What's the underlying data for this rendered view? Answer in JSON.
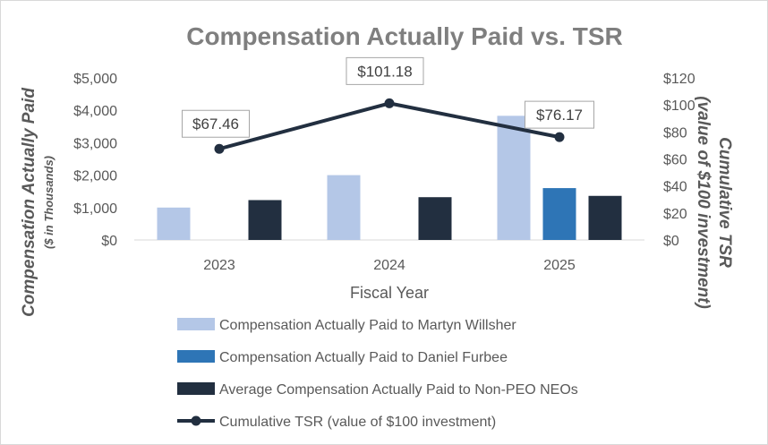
{
  "chart_data": {
    "type": "bar",
    "title": "Compensation Actually Paid vs. TSR",
    "xlabel": "Fiscal Year",
    "ylabel": "Compensation Actually Paid",
    "ylabel_sub": "($ in Thousands)",
    "y2label": "Cumulative TSR",
    "y2label_sub": "(value of $100 investment)",
    "categories": [
      "2023",
      "2024",
      "2025"
    ],
    "ylim": [
      0,
      5000
    ],
    "y2lim": [
      0,
      120
    ],
    "y_ticks": [
      "$0",
      "$1,000",
      "$2,000",
      "$3,000",
      "$4,000",
      "$5,000"
    ],
    "y2_ticks": [
      "$0",
      "$20",
      "$40",
      "$60",
      "$80",
      "$100",
      "$120"
    ],
    "grid": false,
    "legend_position": "bottom",
    "series": [
      {
        "name": "Compensation Actually Paid to Martyn Willsher",
        "type": "bar",
        "axis": "left",
        "color": "#b4c7e7",
        "values": [
          1000,
          2000,
          3830
        ]
      },
      {
        "name": "Compensation Actually Paid to Daniel Furbee",
        "type": "bar",
        "axis": "left",
        "color": "#2e75b6",
        "values": [
          null,
          null,
          1600
        ]
      },
      {
        "name": "Average Compensation Actually Paid to Non-PEO NEOs",
        "type": "bar",
        "axis": "left",
        "color": "#222f40",
        "values": [
          1230,
          1320,
          1360
        ]
      },
      {
        "name": "Cumulative TSR (value of $100 investment)",
        "type": "line",
        "axis": "right",
        "color": "#222f40",
        "values": [
          67.46,
          101.18,
          76.17
        ],
        "labels": [
          "$67.46",
          "$101.18",
          "$76.17"
        ]
      }
    ]
  }
}
